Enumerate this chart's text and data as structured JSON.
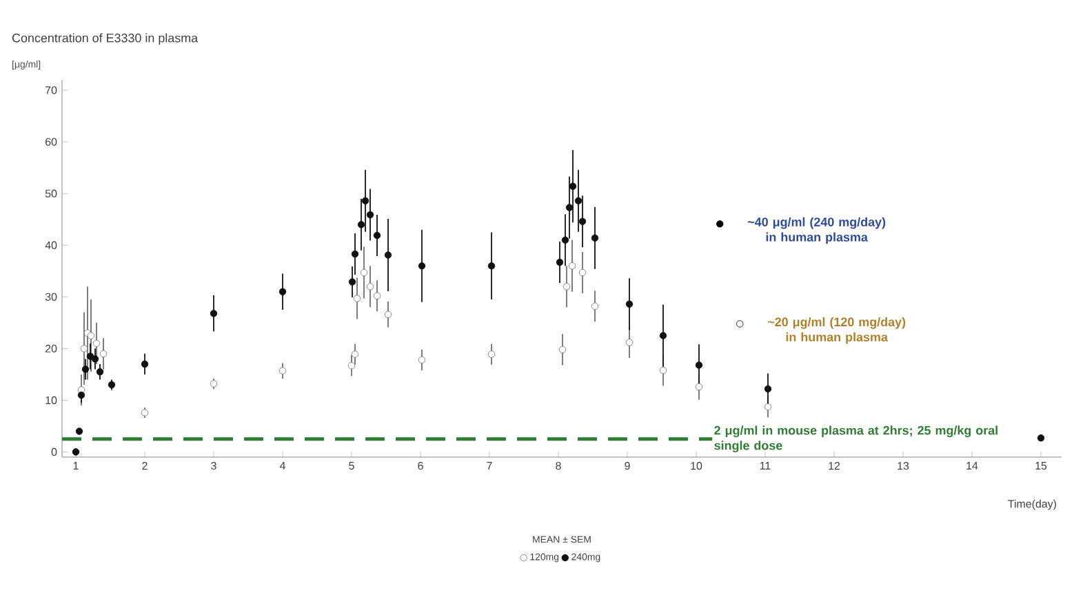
{
  "chart_data": {
    "type": "scatter",
    "title": "Concentration of E3330 in plasma",
    "ylabel": "[μg/ml]",
    "xlabel": "Time(day)",
    "legend_title": "MEAN ± SEM",
    "legend": "bottom",
    "marker": "circle",
    "xlim": [
      0.8,
      15.3
    ],
    "xticks": [
      1,
      2,
      3,
      4,
      5,
      6,
      7,
      8,
      9,
      10,
      11,
      12,
      13,
      14,
      15
    ],
    "ylim": [
      -1,
      72
    ],
    "yticks": [
      0,
      10,
      20,
      30,
      40,
      50,
      60,
      70
    ],
    "series": [
      {
        "name": "120mg",
        "color": "#6e6e6e",
        "x": [
          1.0,
          1.05,
          1.08,
          1.12,
          1.17,
          1.22,
          1.3,
          1.4,
          2.0,
          3.0,
          4.0,
          5.0,
          5.05,
          5.08,
          5.18,
          5.27,
          5.37,
          5.53,
          6.02,
          7.03,
          8.06,
          8.12,
          8.2,
          8.35,
          8.53,
          9.03,
          9.52,
          10.04,
          11.04
        ],
        "values": [
          0,
          null,
          12,
          20,
          23,
          22.5,
          21,
          19,
          7.6,
          13.2,
          15.7,
          16.7,
          18.9,
          29.7,
          34.7,
          32,
          30.2,
          26.6,
          17.8,
          18.9,
          19.8,
          32,
          36,
          34.7,
          28.2,
          21.2,
          15.8,
          12.6,
          8.7
        ],
        "errors": [
          null,
          null,
          3,
          7,
          9,
          7,
          4,
          3,
          1,
          1,
          1.5,
          2,
          2,
          4,
          5,
          4,
          3,
          2.5,
          2,
          2,
          3,
          4,
          5,
          4,
          3,
          3,
          3,
          2.5,
          2
        ]
      },
      {
        "name": "240mg",
        "color": "#111111",
        "x": [
          1.0,
          1.05,
          1.08,
          1.14,
          1.21,
          1.28,
          1.35,
          1.52,
          2.0,
          3.0,
          4.0,
          5.01,
          5.05,
          5.14,
          5.2,
          5.27,
          5.37,
          5.53,
          6.02,
          7.03,
          8.02,
          8.1,
          8.16,
          8.21,
          8.29,
          8.35,
          8.53,
          9.03,
          9.52,
          10.04,
          11.04,
          15.0
        ],
        "values": [
          0,
          4,
          11,
          16,
          18.5,
          18,
          15.5,
          13,
          17,
          26.8,
          31,
          32.9,
          38.3,
          44,
          48.6,
          45.9,
          41.9,
          38.1,
          36,
          36,
          36.7,
          41,
          47.3,
          51.4,
          48.6,
          44.6,
          41.4,
          28.6,
          22.5,
          16.8,
          12.2,
          2.7
        ],
        "errors": [
          null,
          null,
          1.5,
          2,
          2.5,
          2,
          1.5,
          1,
          2,
          3.5,
          3.5,
          3,
          4,
          5,
          6,
          5,
          4,
          7,
          7,
          6.5,
          4,
          5,
          6,
          7,
          6,
          5,
          6,
          5,
          6,
          4,
          3,
          null
        ]
      }
    ],
    "annotations": [
      "~40 μg/ml (240 mg/day) in human plasma",
      "~20 μg/ml (120 mg/day) in human plasma"
    ],
    "ref_lines": [
      {
        "axis": "y",
        "value": 2.5,
        "label": "2 μg/ml in mouse plasma at 2hrs; 25 mg/kg oral single dose",
        "color": "#2e7d32",
        "line_style": "dashed"
      }
    ]
  }
}
